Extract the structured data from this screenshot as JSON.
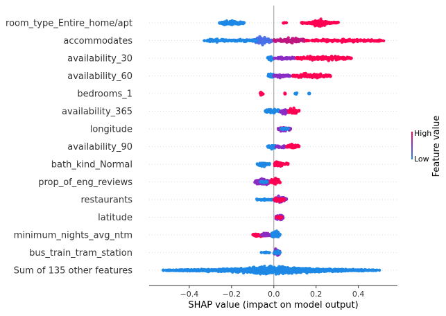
{
  "chart_data": {
    "type": "scatter",
    "subtype": "shap-beeswarm",
    "xlabel": "SHAP value (impact on model output)",
    "xlim": [
      -0.59,
      0.585
    ],
    "xticks": [
      {
        "value": -0.4,
        "label": "−0.4"
      },
      {
        "value": -0.2,
        "label": "−0.2"
      },
      {
        "value": 0.0,
        "label": "0.0"
      },
      {
        "value": 0.2,
        "label": "0.2"
      },
      {
        "value": 0.4,
        "label": "0.4"
      }
    ],
    "features": [
      {
        "name": "room_type_Entire_home/apt",
        "clusters": [
          {
            "min": -0.26,
            "max": -0.14,
            "color": "#1E88E5",
            "spread": 0.65
          },
          {
            "min": 0.18,
            "max": 0.25,
            "color": "#FF0052",
            "spread": 1.0
          },
          {
            "min": 0.13,
            "max": 0.31,
            "color": "#FF0052",
            "spread": 0.35
          },
          {
            "min": 0.04,
            "max": 0.06,
            "color": "#FF0052",
            "spread": 0.1
          }
        ]
      },
      {
        "name": "accommodates",
        "clusters": [
          {
            "min": -0.33,
            "max": -0.2,
            "color": "#1E88E5",
            "spread": 0.35
          },
          {
            "min": -0.1,
            "max": -0.01,
            "color": "#4A6FE8",
            "spread": 1.0
          },
          {
            "min": -0.2,
            "max": -0.08,
            "color": "#1E88E5",
            "spread": 0.3
          },
          {
            "min": 0.0,
            "max": 0.15,
            "color": "#C0157F",
            "spread": 0.6
          },
          {
            "min": 0.15,
            "max": 0.52,
            "color": "#FF0052",
            "spread": 0.35
          }
        ]
      },
      {
        "name": "availability_30",
        "clusters": [
          {
            "min": -0.03,
            "max": 0.0,
            "color": "#1E88E5",
            "spread": 0.6
          },
          {
            "min": 0.0,
            "max": 0.1,
            "color": "#8A2BC4",
            "spread": 0.4
          },
          {
            "min": 0.1,
            "max": 0.37,
            "color": "#FF0052",
            "spread": 0.5
          }
        ]
      },
      {
        "name": "availability_60",
        "clusters": [
          {
            "min": -0.03,
            "max": 0.0,
            "color": "#1E88E5",
            "spread": 0.6
          },
          {
            "min": 0.0,
            "max": 0.08,
            "color": "#8A2BC4",
            "spread": 0.4
          },
          {
            "min": 0.08,
            "max": 0.27,
            "color": "#FF0052",
            "spread": 0.5
          }
        ]
      },
      {
        "name": "bedrooms_1",
        "clusters": [
          {
            "min": -0.065,
            "max": -0.05,
            "color": "#FF0052",
            "spread": 0.6
          },
          {
            "min": 0.1,
            "max": 0.11,
            "color": "#1E88E5",
            "spread": 0.3
          },
          {
            "min": 0.165,
            "max": 0.17,
            "color": "#1E88E5",
            "spread": 0.2
          },
          {
            "min": 0.05,
            "max": 0.055,
            "color": "#FF0052",
            "spread": 0.2
          }
        ]
      },
      {
        "name": "availability_365",
        "clusters": [
          {
            "min": -0.04,
            "max": 0.03,
            "color": "#1E88E5",
            "spread": 0.6
          },
          {
            "min": 0.03,
            "max": 0.07,
            "color": "#8A2BC4",
            "spread": 0.6
          },
          {
            "min": 0.07,
            "max": 0.12,
            "color": "#FF0052",
            "spread": 0.7
          }
        ]
      },
      {
        "name": "longitude",
        "clusters": [
          {
            "min": 0.02,
            "max": 0.08,
            "color": "#8A2BC4",
            "spread": 0.6
          },
          {
            "min": 0.03,
            "max": 0.07,
            "color": "#FF0052",
            "spread": 0.3
          },
          {
            "min": 0.03,
            "max": 0.07,
            "color": "#1E88E5",
            "spread": 0.3
          }
        ]
      },
      {
        "name": "availability_90",
        "clusters": [
          {
            "min": -0.03,
            "max": 0.01,
            "color": "#1E88E5",
            "spread": 0.6
          },
          {
            "min": 0.01,
            "max": 0.06,
            "color": "#8A2BC4",
            "spread": 0.4
          },
          {
            "min": 0.06,
            "max": 0.12,
            "color": "#FF0052",
            "spread": 0.6
          }
        ]
      },
      {
        "name": "bath_kind_Normal",
        "clusters": [
          {
            "min": -0.08,
            "max": -0.02,
            "color": "#1E88E5",
            "spread": 0.5
          },
          {
            "min": 0.0,
            "max": 0.04,
            "color": "#FF0052",
            "spread": 1.0
          },
          {
            "min": 0.04,
            "max": 0.07,
            "color": "#FF0052",
            "spread": 0.3
          }
        ]
      },
      {
        "name": "prop_of_eng_reviews",
        "clusters": [
          {
            "min": -0.09,
            "max": -0.02,
            "color": "#8A2BC4",
            "spread": 0.9
          },
          {
            "min": -0.02,
            "max": 0.03,
            "color": "#FF0052",
            "spread": 0.8
          },
          {
            "min": -0.07,
            "max": -0.03,
            "color": "#1E88E5",
            "spread": 0.3
          }
        ]
      },
      {
        "name": "restaurants",
        "clusters": [
          {
            "min": -0.09,
            "max": 0.0,
            "color": "#1E88E5",
            "spread": 0.2
          },
          {
            "min": 0.0,
            "max": 0.06,
            "color": "#8A2BC4",
            "spread": 0.8
          },
          {
            "min": 0.0,
            "max": 0.05,
            "color": "#FF0052",
            "spread": 0.5
          }
        ]
      },
      {
        "name": "latitude",
        "clusters": [
          {
            "min": 0.01,
            "max": 0.045,
            "color": "#8A2BC4",
            "spread": 0.9
          },
          {
            "min": 0.01,
            "max": 0.04,
            "color": "#FF0052",
            "spread": 0.4
          }
        ]
      },
      {
        "name": "minimum_nights_avg_ntm",
        "clusters": [
          {
            "min": -0.1,
            "max": -0.01,
            "color": "#FF0052",
            "spread": 0.5
          },
          {
            "min": -0.06,
            "max": -0.01,
            "color": "#8A2BC4",
            "spread": 0.4
          },
          {
            "min": -0.01,
            "max": 0.03,
            "color": "#1E88E5",
            "spread": 1.0
          }
        ]
      },
      {
        "name": "bus_train_tram_station",
        "clusters": [
          {
            "min": -0.06,
            "max": -0.02,
            "color": "#1E88E5",
            "spread": 0.15
          },
          {
            "min": 0.0,
            "max": 0.03,
            "color": "#8A2BC4",
            "spread": 0.9
          },
          {
            "min": 0.0,
            "max": 0.03,
            "color": "#1E88E5",
            "spread": 0.5
          }
        ]
      },
      {
        "name": "Sum of 135 other features",
        "clusters": [
          {
            "min": -0.53,
            "max": 0.5,
            "color": "#1E88E5",
            "spread": 0.25
          },
          {
            "min": -0.45,
            "max": 0.44,
            "color": "#1E88E5",
            "spread": 0.45
          },
          {
            "min": -0.25,
            "max": 0.25,
            "color": "#1E88E5",
            "spread": 0.8
          },
          {
            "min": -0.12,
            "max": 0.14,
            "color": "#1E88E5",
            "spread": 1.0
          }
        ]
      }
    ],
    "colorbar": {
      "title": "Feature value",
      "high_label": "High",
      "low_label": "Low",
      "colors": [
        "#FF0052",
        "#7C35C8",
        "#1E88E5"
      ]
    }
  }
}
